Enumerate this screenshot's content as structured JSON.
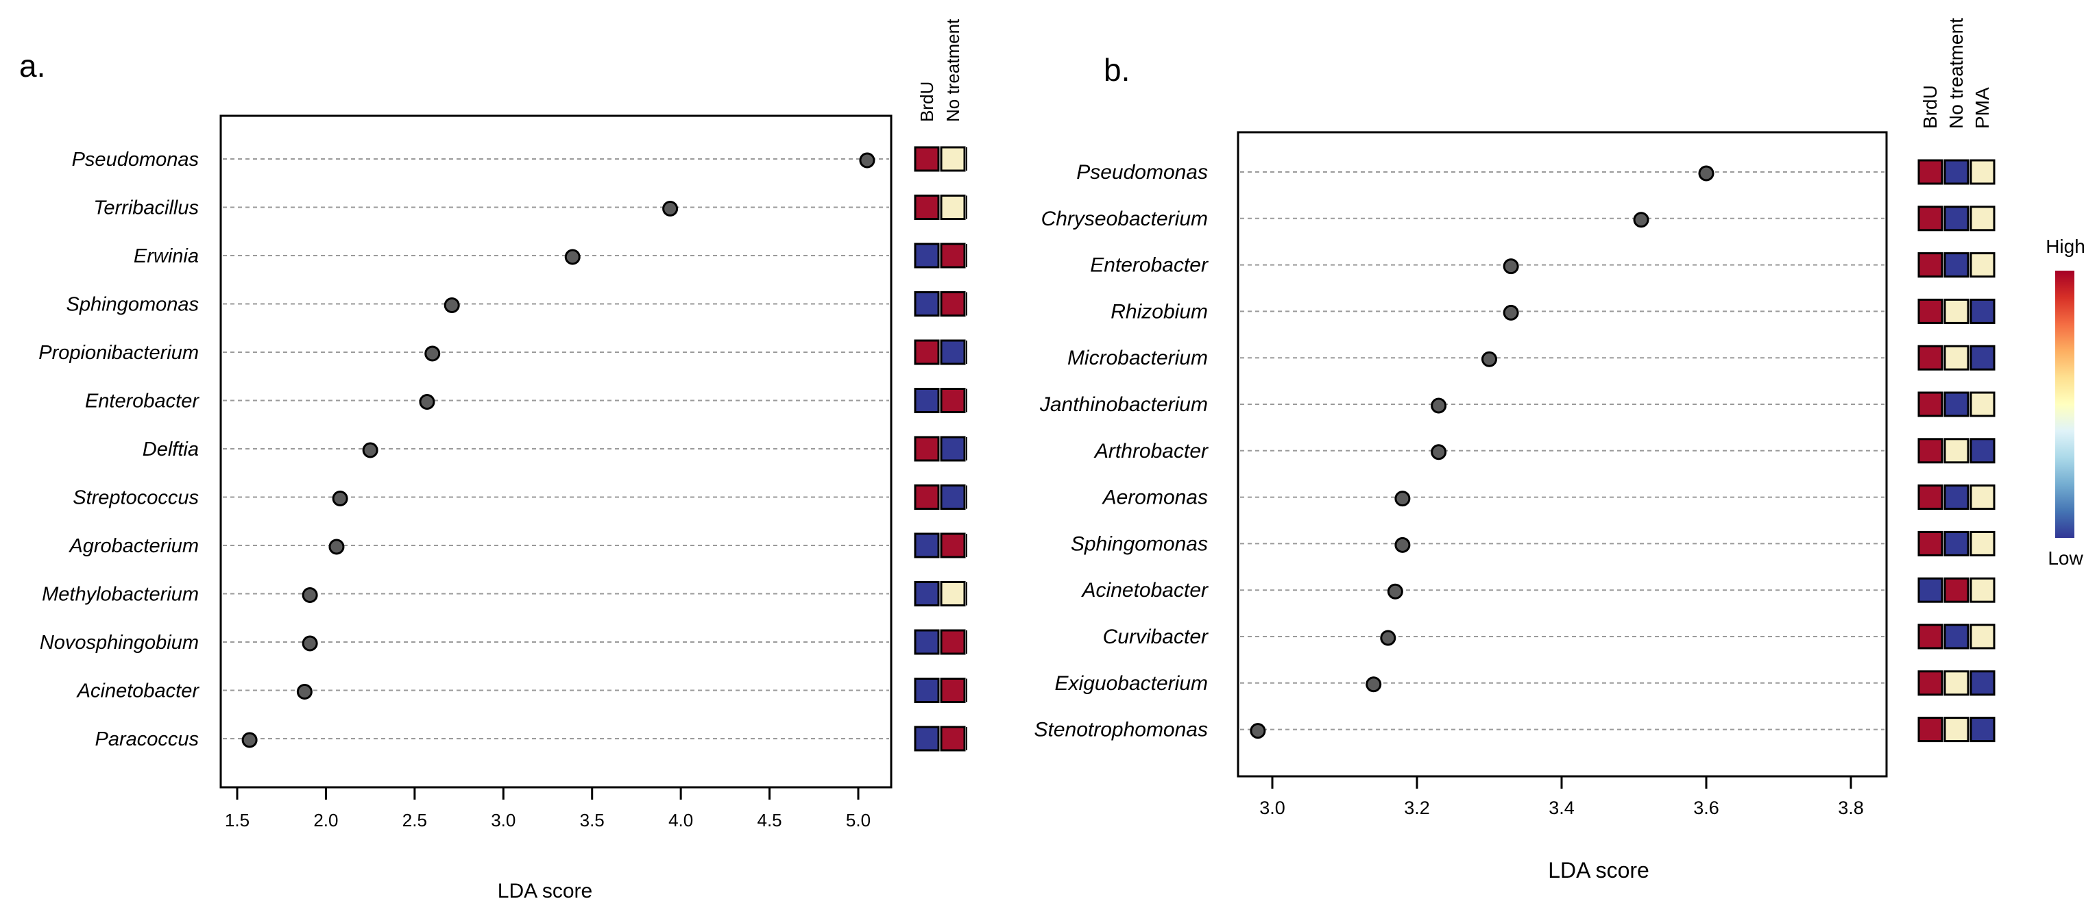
{
  "colors": {
    "high": "#a50f2d",
    "low": "#333a94",
    "mid": "#f7efc6",
    "dot": "#5c5c5c",
    "grid": "#9a9a9a",
    "gradient": [
      "#313695",
      "#4575b4",
      "#74add1",
      "#abd9e9",
      "#e0f3f8",
      "#ffffbf",
      "#fee090",
      "#fdae61",
      "#f46d43",
      "#d73027",
      "#a50026"
    ]
  },
  "legend": {
    "high_label": "High",
    "low_label": "Low"
  },
  "chart_data": [
    {
      "panel_label": "a.",
      "type": "scatter",
      "orientation": "horizontal-dotplot",
      "xlabel": "LDA score",
      "xlim": [
        1.5,
        5.0
      ],
      "xticks": [
        "1.5",
        "2.0",
        "2.5",
        "3.0",
        "3.5",
        "4.0",
        "4.5",
        "5.0"
      ],
      "categories": [
        "Pseudomonas",
        "Terribacillus",
        "Erwinia",
        "Sphingomonas",
        "Propionibacterium",
        "Enterobacter",
        "Delftia",
        "Streptococcus",
        "Agrobacterium",
        "Methylobacterium",
        "Novosphingobium",
        "Acinetobacter",
        "Paracoccus"
      ],
      "values": [
        5.05,
        3.94,
        3.39,
        2.71,
        2.6,
        2.57,
        2.25,
        2.08,
        2.06,
        1.91,
        1.91,
        1.88,
        1.57
      ],
      "heatmap": {
        "columns": [
          "BrdU",
          "No treatment"
        ],
        "levels": [
          [
            "high",
            "mid"
          ],
          [
            "high",
            "mid"
          ],
          [
            "low",
            "high"
          ],
          [
            "low",
            "high"
          ],
          [
            "high",
            "low"
          ],
          [
            "low",
            "high"
          ],
          [
            "high",
            "low"
          ],
          [
            "high",
            "low"
          ],
          [
            "low",
            "high"
          ],
          [
            "low",
            "mid"
          ],
          [
            "low",
            "high"
          ],
          [
            "low",
            "high"
          ],
          [
            "low",
            "high"
          ]
        ]
      }
    },
    {
      "panel_label": "b.",
      "type": "scatter",
      "orientation": "horizontal-dotplot",
      "xlabel": "LDA score",
      "xlim": [
        3.0,
        3.8
      ],
      "xticks": [
        "3.0",
        "3.2",
        "3.4",
        "3.6",
        "3.8"
      ],
      "categories": [
        "Pseudomonas",
        "Chryseobacterium",
        "Enterobacter",
        "Rhizobium",
        "Microbacterium",
        "Janthinobacterium",
        "Arthrobacter",
        "Aeromonas",
        "Sphingomonas",
        "Acinetobacter",
        "Curvibacter",
        "Exiguobacterium",
        "Stenotrophomonas"
      ],
      "values": [
        3.6,
        3.51,
        3.33,
        3.33,
        3.3,
        3.23,
        3.23,
        3.18,
        3.18,
        3.17,
        3.16,
        3.14,
        2.98
      ],
      "heatmap": {
        "columns": [
          "BrdU",
          "No treatment",
          "PMA"
        ],
        "levels": [
          [
            "high",
            "low",
            "mid"
          ],
          [
            "high",
            "low",
            "mid"
          ],
          [
            "high",
            "low",
            "mid"
          ],
          [
            "high",
            "mid",
            "low"
          ],
          [
            "high",
            "mid",
            "low"
          ],
          [
            "high",
            "low",
            "mid"
          ],
          [
            "high",
            "mid",
            "low"
          ],
          [
            "high",
            "low",
            "mid"
          ],
          [
            "high",
            "low",
            "mid"
          ],
          [
            "low",
            "high",
            "mid"
          ],
          [
            "high",
            "low",
            "mid"
          ],
          [
            "high",
            "mid",
            "low"
          ],
          [
            "high",
            "mid",
            "low"
          ]
        ]
      }
    }
  ]
}
